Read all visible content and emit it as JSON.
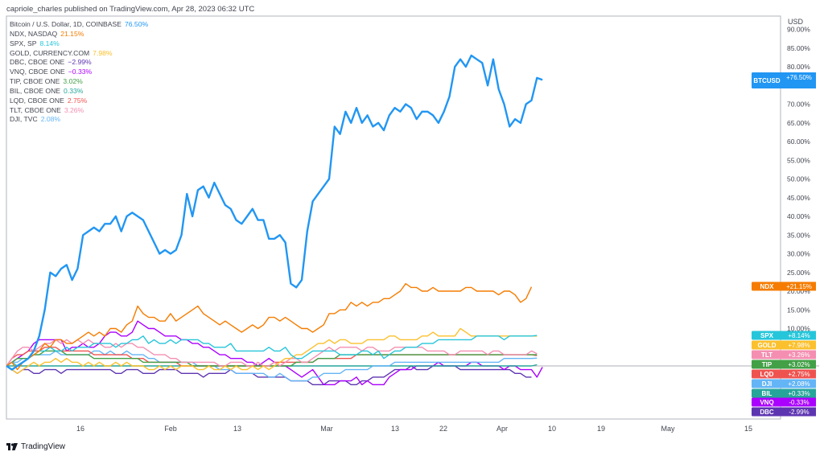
{
  "header": {
    "publisher": "capriole_charles published on TradingView.com, Apr 28, 2023 06:32 UTC"
  },
  "footer": {
    "brand": "TradingView"
  },
  "axis": {
    "currency": "USD"
  },
  "legend": [
    {
      "name": "Bitcoin / U.S. Dollar, 1D, COINBASE",
      "value": "76.50%",
      "color": "#2196f3"
    },
    {
      "name": "NDX, NASDAQ",
      "value": "21.15%",
      "color": "#f57c00"
    },
    {
      "name": "SPX, SP",
      "value": "8.14%",
      "color": "#26c6da"
    },
    {
      "name": "GOLD, CURRENCY.COM",
      "value": "7.98%",
      "color": "#fbc02d"
    },
    {
      "name": "DBC, CBOE ONE",
      "value": "−2.99%",
      "color": "#5e35b1"
    },
    {
      "name": "VNQ, CBOE ONE",
      "value": "−0.33%",
      "color": "#aa00ff"
    },
    {
      "name": "TIP, CBOE ONE",
      "value": "3.02%",
      "color": "#43a047"
    },
    {
      "name": "BIL, CBOE ONE",
      "value": "0.33%",
      "color": "#26a69a"
    },
    {
      "name": "LQD, CBOE ONE",
      "value": "2.75%",
      "color": "#ef5350"
    },
    {
      "name": "TLT, CBOE ONE",
      "value": "3.26%",
      "color": "#f48fb1"
    },
    {
      "name": "DJI, TVC",
      "value": "2.08%",
      "color": "#64b5f6"
    }
  ],
  "chart_data": {
    "type": "line",
    "x_ticks": [
      "16",
      "Feb",
      "13",
      "Mar",
      "13",
      "22",
      "Apr",
      "10",
      "19",
      "May",
      "15"
    ],
    "y_ticks": [
      "90.00%",
      "85.00%",
      "80.00%",
      "75.00%",
      "70.00%",
      "65.00%",
      "60.00%",
      "55.00%",
      "50.00%",
      "45.00%",
      "40.00%",
      "35.00%",
      "30.00%",
      "25.00%",
      "20.00%",
      "15.00%",
      "10.00%"
    ],
    "ylim": [
      -15,
      92
    ],
    "x_range": [
      0,
      118
    ],
    "series": [
      {
        "name": "BTCUSD",
        "color": "#2196f3",
        "label": "+76.50%",
        "values": [
          0,
          -1,
          0,
          1,
          2,
          4,
          8,
          15,
          25,
          24,
          26,
          27,
          23,
          26,
          35,
          36,
          37,
          36,
          38,
          38,
          40,
          36,
          40,
          41,
          40,
          39,
          36,
          33,
          30,
          31,
          30,
          31,
          35,
          46,
          40,
          47,
          48,
          45,
          49,
          46,
          43,
          42,
          39,
          38,
          40,
          42,
          39,
          39,
          34,
          34,
          35,
          33,
          22,
          21,
          23,
          36,
          44,
          46,
          48,
          50,
          64,
          62,
          68,
          65,
          69,
          65,
          67,
          64,
          65,
          63,
          67,
          69,
          68,
          70,
          69,
          66,
          68,
          68,
          67,
          65,
          68,
          72,
          80,
          82,
          80,
          83,
          82,
          81,
          75,
          82,
          74,
          70,
          64,
          66,
          65,
          70,
          71,
          77,
          76.5
        ]
      },
      {
        "name": "NDX",
        "color": "#f57c00",
        "label": "+21.15%",
        "values": [
          0,
          1,
          -1,
          1,
          2,
          3,
          4,
          6,
          5,
          7,
          7,
          6,
          6,
          7,
          8,
          9,
          8,
          9,
          8,
          10,
          10,
          9,
          11,
          12,
          16,
          14,
          13,
          13,
          12,
          12,
          14,
          12,
          13,
          14,
          15,
          16,
          14,
          13,
          12,
          11,
          12,
          11,
          10,
          9,
          10,
          11,
          10,
          11,
          13,
          13,
          12,
          13,
          12,
          11,
          10,
          10,
          9,
          10,
          11,
          14,
          14,
          15,
          15,
          17,
          16,
          17,
          16,
          17,
          17,
          18,
          18,
          19,
          20,
          22,
          21,
          21,
          20,
          20,
          21,
          20,
          20,
          20,
          20,
          20,
          21,
          21,
          20,
          20,
          20,
          20,
          19,
          20,
          20,
          19,
          17,
          18,
          21.15
        ]
      },
      {
        "name": "SPX",
        "color": "#26c6da",
        "label": "+8.14%",
        "values": [
          0,
          1,
          0,
          1,
          2,
          3,
          4,
          4,
          5,
          4,
          4,
          5,
          4,
          5,
          5,
          5,
          6,
          6,
          6,
          6,
          5,
          6,
          6,
          7,
          7,
          8,
          6,
          7,
          6,
          6,
          7,
          6,
          7,
          7,
          7,
          7,
          6,
          6,
          5,
          5,
          5,
          6,
          4,
          4,
          4,
          4,
          4,
          4,
          5,
          4,
          4,
          5,
          3,
          2,
          2,
          3,
          4,
          4,
          4,
          4,
          4,
          3,
          3,
          3,
          3,
          4,
          4,
          3,
          4,
          2,
          3,
          4,
          4,
          5,
          5,
          5,
          6,
          6,
          6,
          7,
          7,
          7,
          7,
          7,
          7,
          7,
          8,
          8,
          8,
          8,
          8,
          7,
          8,
          8,
          8,
          8,
          8,
          8.14
        ]
      },
      {
        "name": "GOLD",
        "color": "#fbc02d",
        "label": "+7.98%",
        "values": [
          0,
          -1,
          -2,
          -1,
          0,
          1,
          0,
          1,
          1,
          2,
          1,
          2,
          1,
          1,
          0,
          1,
          0,
          1,
          0,
          0,
          1,
          0,
          1,
          0,
          0,
          0,
          -1,
          -1,
          0,
          -1,
          0,
          -1,
          0,
          0,
          0,
          -1,
          -1,
          0,
          -1,
          -1,
          0,
          -1,
          0,
          -1,
          -1,
          0,
          -1,
          0,
          -1,
          0,
          1,
          2,
          2,
          3,
          3,
          4,
          5,
          6,
          6,
          7,
          6,
          7,
          7,
          6,
          6,
          6,
          7,
          7,
          7,
          7,
          8,
          8,
          7,
          7,
          7,
          7,
          8,
          8,
          9,
          8,
          8,
          8,
          8,
          10,
          9,
          8,
          8,
          8,
          8,
          8,
          8,
          8,
          8,
          8,
          8,
          8,
          8,
          7.98
        ]
      },
      {
        "name": "TLT",
        "color": "#f48fb1",
        "label": "+3.26%",
        "values": [
          0,
          2,
          4,
          5,
          5,
          4,
          5,
          6,
          6,
          7,
          6,
          7,
          6,
          7,
          6,
          7,
          6,
          6,
          5,
          5,
          6,
          5,
          6,
          6,
          5,
          5,
          4,
          3,
          3,
          3,
          2,
          2,
          1,
          1,
          1,
          1,
          1,
          1,
          1,
          0,
          0,
          1,
          1,
          1,
          0,
          0,
          1,
          0,
          0,
          1,
          0,
          1,
          2,
          2,
          1,
          1,
          2,
          3,
          4,
          5,
          4,
          5,
          5,
          5,
          5,
          4,
          5,
          5,
          4,
          4,
          4,
          5,
          5,
          5,
          5,
          5,
          5,
          4,
          4,
          4,
          4,
          3,
          3,
          4,
          4,
          4,
          4,
          4,
          3,
          4,
          4,
          3,
          3,
          3,
          3,
          3,
          4,
          3.26
        ]
      },
      {
        "name": "TIP",
        "color": "#43a047",
        "label": "+3.02%",
        "values": [
          0,
          1,
          2,
          2,
          2,
          3,
          3,
          4,
          4,
          4,
          4,
          3,
          3,
          3,
          3,
          3,
          2,
          2,
          2,
          2,
          2,
          2,
          2,
          2,
          2,
          1,
          1,
          1,
          1,
          1,
          1,
          1,
          1,
          1,
          0,
          0,
          0,
          0,
          0,
          0,
          0,
          0,
          0,
          0,
          0,
          0,
          0,
          0,
          0,
          0,
          0,
          0,
          0,
          1,
          1,
          1,
          1,
          2,
          2,
          2,
          2,
          3,
          3,
          3,
          3,
          3,
          3,
          3,
          3,
          3,
          3,
          3,
          3,
          3,
          3,
          3,
          3,
          3,
          3,
          3,
          3,
          3,
          3,
          3,
          3,
          3,
          3,
          3,
          3,
          3,
          3,
          3,
          3,
          3,
          3,
          3,
          3,
          3.02
        ]
      },
      {
        "name": "LQD",
        "color": "#ef5350",
        "label": "+2.75%",
        "values": [
          0,
          2,
          3,
          3,
          4,
          4,
          4,
          5,
          5,
          5,
          4,
          4,
          4,
          4,
          4,
          4,
          3,
          3,
          3,
          3,
          3,
          3,
          3,
          2,
          2,
          2,
          1,
          1,
          1,
          1,
          1,
          1,
          0,
          0,
          0,
          0,
          0,
          0,
          0,
          0,
          0,
          0,
          0,
          0,
          0,
          0,
          0,
          0,
          0,
          1,
          1,
          1,
          1,
          1,
          1,
          1,
          1,
          2,
          2,
          2,
          2,
          2,
          2,
          2,
          3,
          3,
          3,
          3,
          3,
          3,
          3,
          3,
          3,
          3,
          3,
          3,
          3,
          3,
          3,
          3,
          3,
          3,
          3,
          3,
          3,
          3,
          3,
          3,
          3,
          3,
          3,
          3,
          3,
          3,
          3,
          3,
          3,
          2.75
        ]
      },
      {
        "name": "DJI",
        "color": "#64b5f6",
        "label": "+2.08%",
        "values": [
          0,
          1,
          1,
          2,
          2,
          3,
          3,
          3,
          3,
          4,
          3,
          3,
          3,
          3,
          3,
          3,
          4,
          4,
          3,
          4,
          3,
          3,
          4,
          3,
          3,
          3,
          2,
          2,
          1,
          1,
          1,
          1,
          1,
          1,
          1,
          0,
          0,
          0,
          0,
          -1,
          -1,
          -1,
          -2,
          -2,
          -2,
          -2,
          -2,
          -2,
          -3,
          -3,
          -2,
          -3,
          -4,
          -4,
          -4,
          -4,
          -3,
          -3,
          -2,
          -2,
          -2,
          -2,
          -1,
          -1,
          -1,
          -1,
          -1,
          0,
          0,
          0,
          0,
          1,
          1,
          1,
          1,
          1,
          1,
          1,
          1,
          1,
          1,
          1,
          1,
          1,
          1,
          1,
          1,
          1,
          1,
          1,
          1,
          2,
          2,
          2,
          2,
          2,
          2,
          2.08
        ]
      },
      {
        "name": "BIL",
        "color": "#26a69a",
        "label": "+0.33%",
        "values": [
          0,
          0,
          0,
          0,
          0,
          0,
          0,
          0,
          0,
          0,
          0,
          0,
          0,
          0,
          0,
          0,
          0,
          0,
          0,
          0,
          0,
          0,
          0,
          0,
          0,
          0,
          0,
          0,
          0,
          0,
          0,
          0,
          0,
          0,
          0,
          0,
          0,
          0,
          0,
          0,
          0,
          0,
          0,
          0,
          0,
          0,
          0,
          0,
          0,
          0,
          0,
          0,
          0,
          0,
          0,
          0,
          0,
          0,
          0,
          0,
          0,
          0,
          0,
          0,
          0,
          0,
          0,
          0,
          0,
          0,
          0,
          0,
          0,
          0,
          0,
          0,
          0,
          0,
          0,
          0,
          0,
          0,
          0,
          0,
          0,
          0,
          0,
          0,
          0,
          0,
          0,
          0,
          0,
          0,
          0,
          0,
          0,
          0.33
        ]
      },
      {
        "name": "VNQ",
        "color": "#aa00ff",
        "label": "-0.33%",
        "values": [
          0,
          1,
          2,
          3,
          4,
          6,
          7,
          7,
          7,
          7,
          7,
          4,
          5,
          5,
          6,
          5,
          5,
          6,
          8,
          9,
          9,
          8,
          8,
          9,
          12,
          11,
          10,
          10,
          9,
          8,
          8,
          8,
          7,
          7,
          6,
          6,
          5,
          5,
          4,
          3,
          3,
          2,
          2,
          2,
          1,
          1,
          0,
          1,
          2,
          1,
          0,
          0,
          -1,
          -2,
          -3,
          -2,
          -1,
          -3,
          -5,
          -5,
          -5,
          -4,
          -4,
          -4,
          -3,
          -5,
          -4,
          -5,
          -5,
          -5,
          -3,
          -2,
          -1,
          -1,
          -1,
          0,
          0,
          0,
          0,
          1,
          0,
          0,
          0,
          0,
          0,
          1,
          1,
          0,
          0,
          0,
          0,
          -1,
          0,
          0,
          -1,
          -1,
          -1,
          -3,
          -0.33
        ]
      },
      {
        "name": "DBC",
        "color": "#5e35b1",
        "label": "-2.99%",
        "values": [
          0,
          -1,
          -2,
          -1,
          -1,
          -2,
          -2,
          -1,
          -1,
          -1,
          -2,
          -1,
          -1,
          -1,
          -1,
          -1,
          -1,
          -1,
          -1,
          -1,
          -2,
          -2,
          -1,
          -1,
          -1,
          -2,
          -2,
          -2,
          -1,
          -1,
          -1,
          -1,
          -2,
          -2,
          -2,
          -2,
          -3,
          -2,
          -2,
          -2,
          -2,
          -1,
          -2,
          -2,
          -2,
          -2,
          -3,
          -3,
          -3,
          -3,
          -3,
          -3,
          -4,
          -4,
          -4,
          -4,
          -5,
          -5,
          -5,
          -4,
          -4,
          -4,
          -4,
          -5,
          -5,
          -4,
          -4,
          -3,
          -3,
          -3,
          -2,
          -1,
          -1,
          -1,
          0,
          -1,
          -1,
          -1,
          0,
          0,
          0,
          0,
          0,
          -1,
          -1,
          -1,
          -1,
          -1,
          -1,
          -1,
          -1,
          -1,
          -1,
          -2,
          -2,
          -3,
          -2.99
        ]
      }
    ]
  }
}
